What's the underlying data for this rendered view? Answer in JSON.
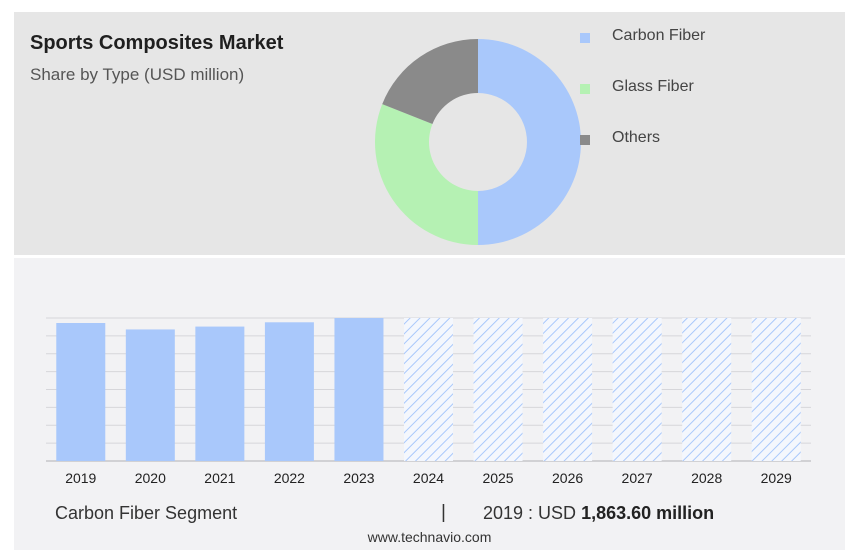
{
  "header": {
    "title": "Sports Composites Market",
    "subtitle": "Share by Type (USD million)"
  },
  "legend": [
    {
      "label": "Carbon Fiber",
      "color": "#a9c8fb"
    },
    {
      "label": "Glass Fiber",
      "color": "#b5f1b3"
    },
    {
      "label": "Others",
      "color": "#8a8a8a"
    }
  ],
  "footer": {
    "segment_label": "Carbon Fiber Segment",
    "separator": "|",
    "value_prefix": "2019 : USD",
    "value_bold": "1,863.60 million",
    "source": "www.technavio.com"
  },
  "chart_data": [
    {
      "type": "pie",
      "subtype": "donut",
      "title": "Sports Composites Market",
      "subtitle": "Share by Type (USD million)",
      "categories": [
        "Carbon Fiber",
        "Glass Fiber",
        "Others"
      ],
      "values": [
        50,
        31,
        19
      ],
      "colors": [
        "#a9c8fb",
        "#b5f1b3",
        "#8a8a8a"
      ],
      "legend_position": "right"
    },
    {
      "type": "bar",
      "categories": [
        "2019",
        "2020",
        "2021",
        "2022",
        "2023",
        "2024",
        "2025",
        "2026",
        "2027",
        "2028",
        "2029"
      ],
      "values": [
        0.965,
        0.92,
        0.94,
        0.97,
        1.0,
        1.0,
        1.0,
        1.0,
        1.0,
        1.0,
        1.0
      ],
      "forecast": [
        false,
        false,
        false,
        false,
        false,
        true,
        true,
        true,
        true,
        true,
        true
      ],
      "ylim": [
        0,
        1
      ],
      "grid": true,
      "colors": {
        "actual": "#a9c8fb",
        "forecast": "#a9c8fb"
      }
    }
  ]
}
